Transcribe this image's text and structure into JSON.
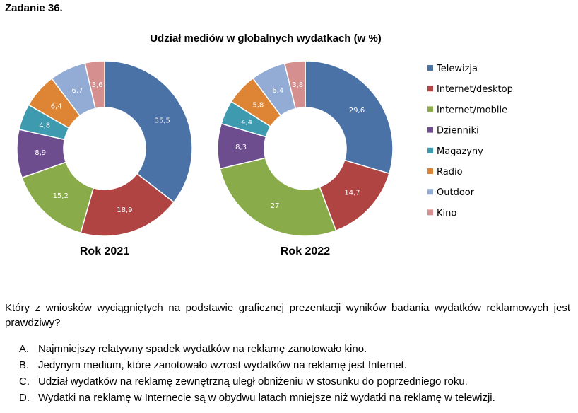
{
  "task_title": "Zadanie 36.",
  "chart_data": {
    "type": "donut",
    "title": "Udział mediów w globalnych wydatkach (w %)",
    "categories": [
      "Telewizja",
      "Internet/desktop",
      "Internet/mobile",
      "Dzienniki",
      "Magazyny",
      "Radio",
      "Outdoor",
      "Kino"
    ],
    "colors": [
      "#4a72a6",
      "#b04443",
      "#8aab4a",
      "#6e4d8f",
      "#3d9aaf",
      "#dd8435",
      "#93acd6",
      "#d58f8f"
    ],
    "series": [
      {
        "name": "Rok 2021",
        "values": [
          35.5,
          18.9,
          15.2,
          8.9,
          4.8,
          6.4,
          6.7,
          3.6
        ],
        "labels": [
          "35,5",
          "18,9",
          "15,2",
          "8,9",
          "4,8",
          "6,4",
          "6,7",
          "3,6"
        ]
      },
      {
        "name": "Rok 2022",
        "values": [
          29.6,
          14.7,
          27,
          8.3,
          4.4,
          5.8,
          6.4,
          3.8
        ],
        "labels": [
          "29,6",
          "14,7",
          "27",
          "8,3",
          "4,4",
          "5,8",
          "6,4",
          "3,8"
        ]
      }
    ],
    "legend_position": "right"
  },
  "question": "Który z wniosków wyciągniętych na podstawie graficznej prezentacji wyników badania wydatków reklamowych jest prawdziwy?",
  "options": [
    {
      "letter": "A.",
      "text": "Najmniejszy relatywny spadek wydatków na reklamę zanotowało kino."
    },
    {
      "letter": "B.",
      "text": "Jedynym medium, które zanotowało wzrost wydatków na reklamę jest Internet."
    },
    {
      "letter": "C.",
      "text": "Udział wydatków na reklamę zewnętrzną uległ obniżeniu w stosunku do poprzedniego roku."
    },
    {
      "letter": "D.",
      "text": "Wydatki na reklamę w Internecie są w obydwu latach mniejsze niż wydatki na reklamę w telewizji."
    }
  ]
}
